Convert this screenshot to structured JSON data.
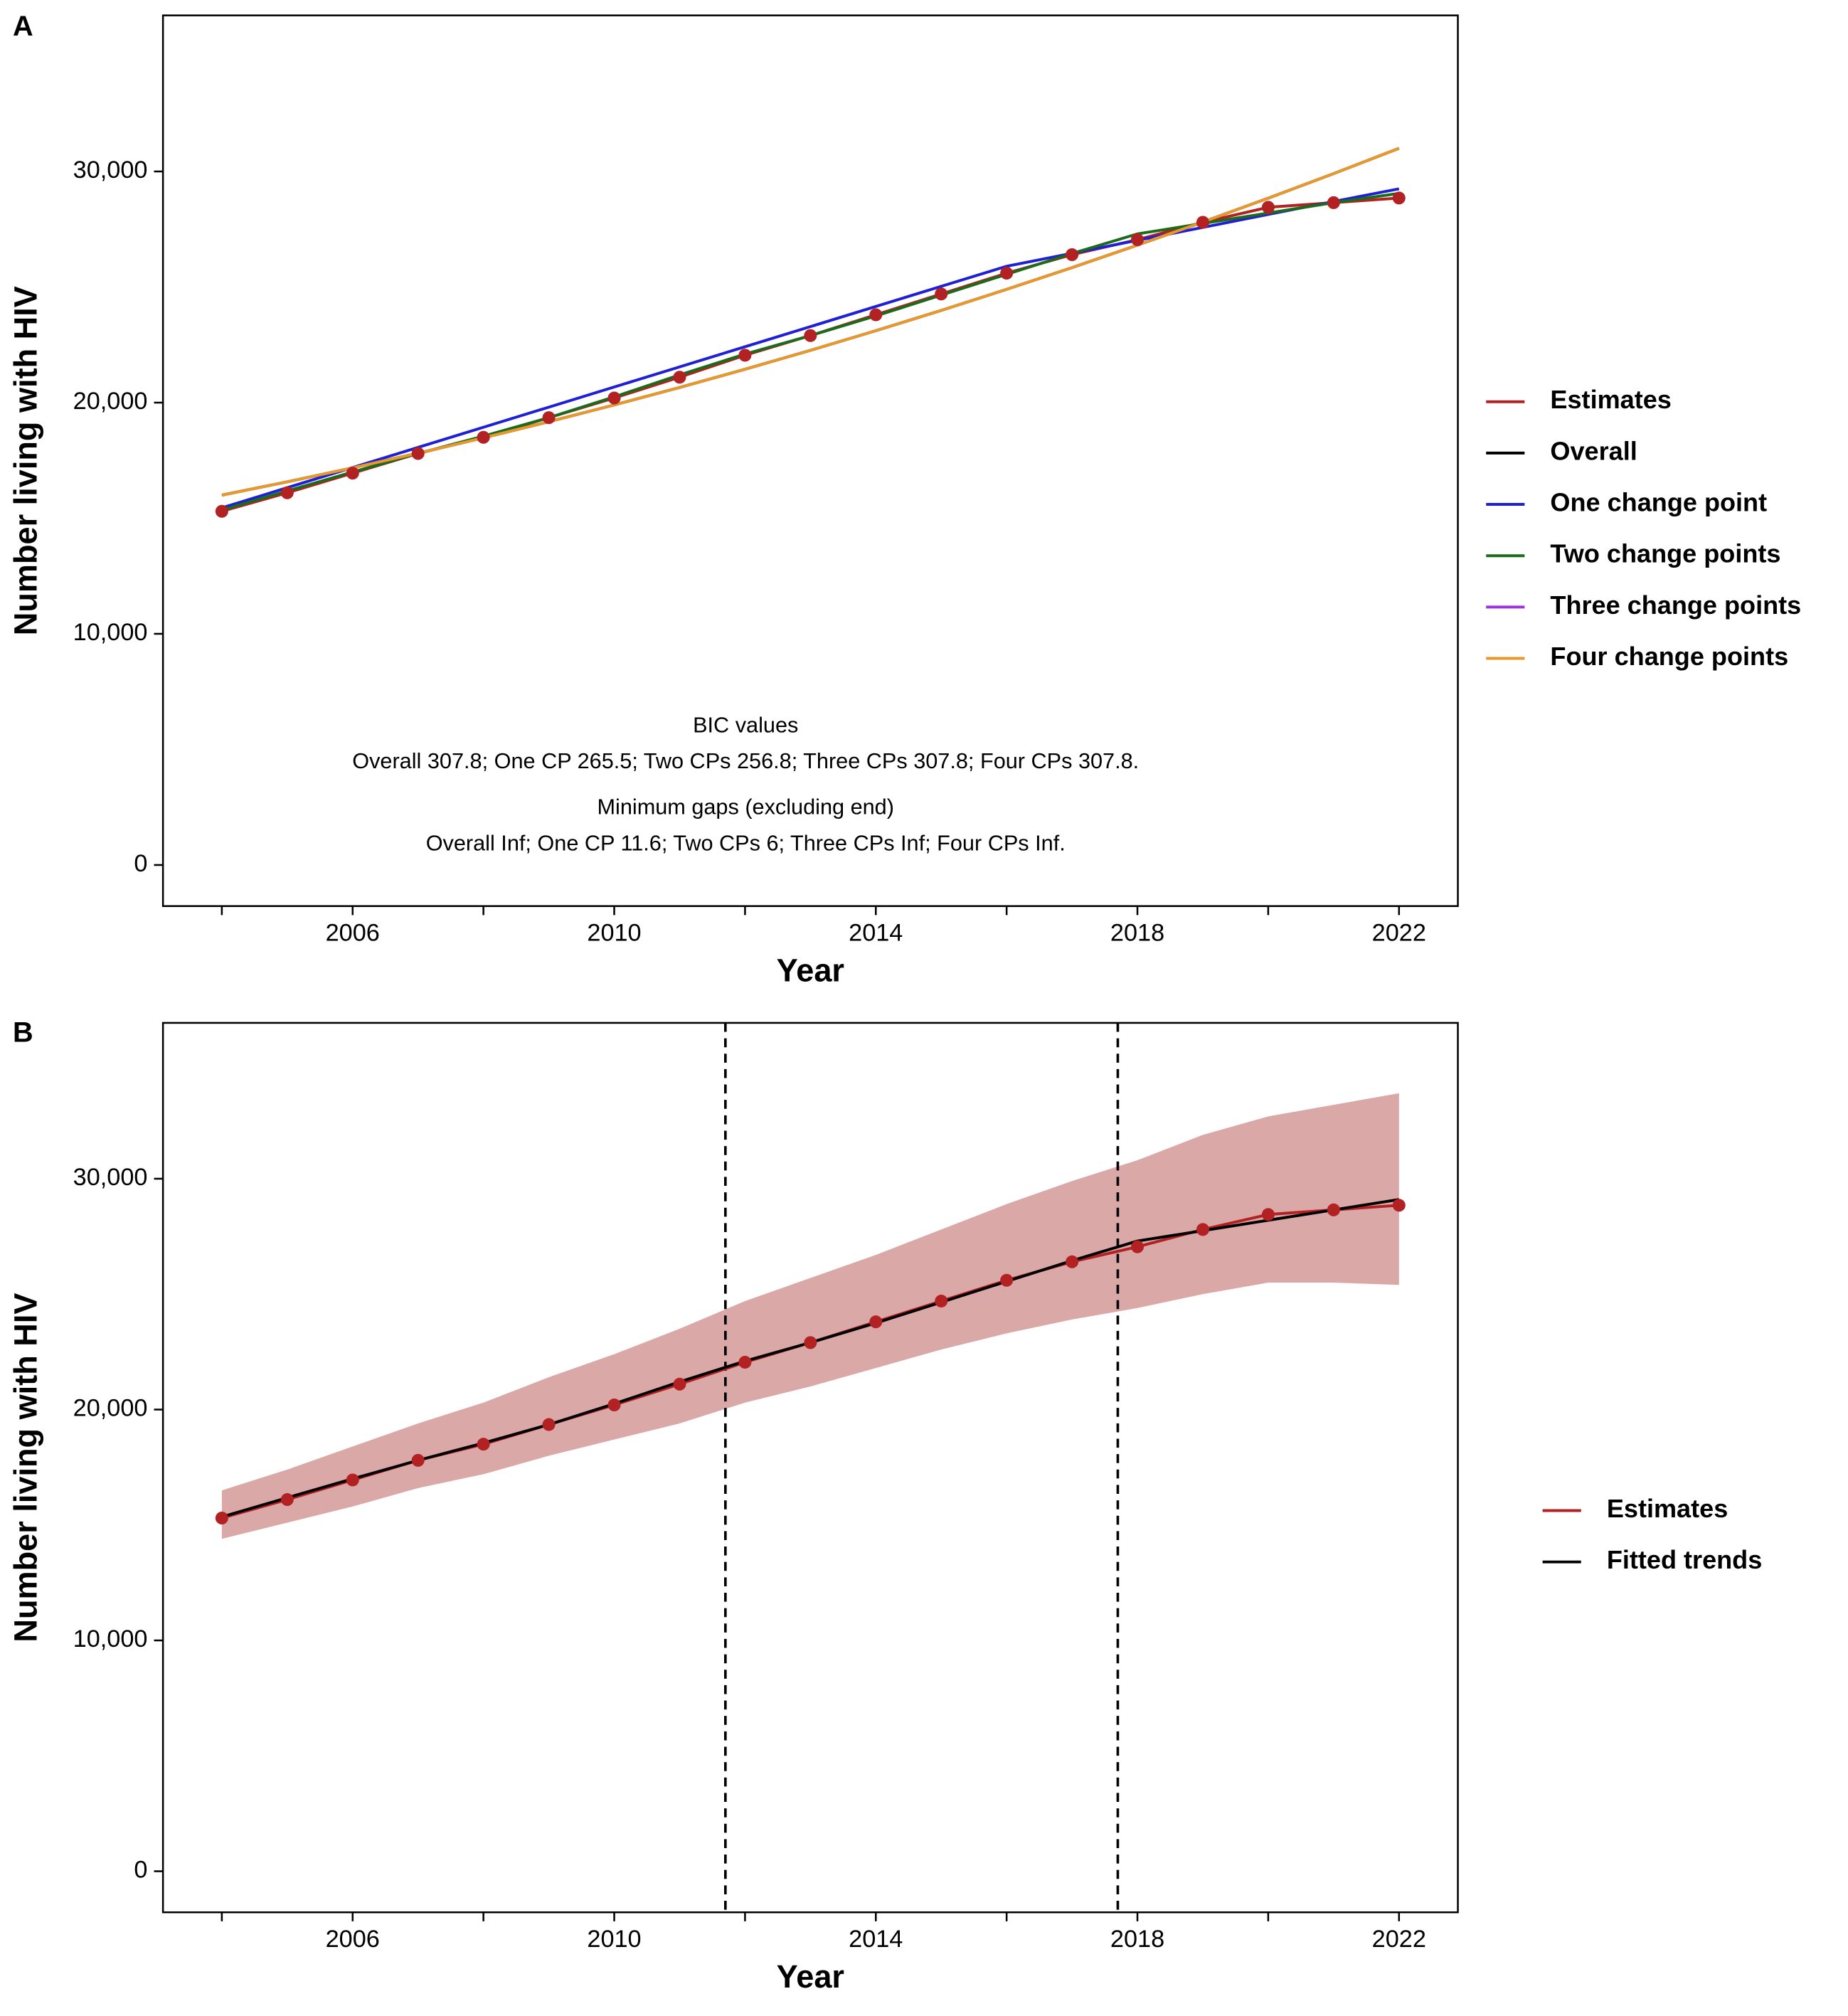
{
  "chart_data": [
    {
      "type": "line",
      "panel": "A",
      "xlabel": "Year",
      "ylabel": "Number living with HIV",
      "x": [
        2004,
        2005,
        2006,
        2007,
        2008,
        2009,
        2010,
        2011,
        2012,
        2013,
        2014,
        2015,
        2016,
        2017,
        2018,
        2019,
        2020,
        2021,
        2022
      ],
      "xlim": [
        2003.1,
        2022.9
      ],
      "xticks": [
        2006,
        2010,
        2014,
        2018,
        2022
      ],
      "xticks_minor": [
        2004,
        2008,
        2012,
        2016,
        2020
      ],
      "ylim": [
        -1778,
        36750
      ],
      "yticks": [
        0,
        {
          "value": 10000,
          "label": "10,000"
        },
        {
          "value": 20000,
          "label": "20,000"
        },
        {
          "value": 30000,
          "label": "30,000"
        }
      ],
      "series": [
        {
          "name": "Estimates",
          "color": "#b22222",
          "markers": true,
          "values": [
            15300,
            16100,
            16950,
            17800,
            18500,
            19350,
            20200,
            21100,
            22050,
            22900,
            23800,
            24700,
            25600,
            26400,
            27050,
            27800,
            28450,
            28650,
            28850
          ]
        },
        {
          "name": "Overall",
          "color": "#000000",
          "values": [
            16000,
            16574,
            17178,
            17812,
            18478,
            19174,
            19900,
            20657,
            21444,
            22262,
            23111,
            23990,
            24900,
            25840,
            26811,
            27812,
            28844,
            29906,
            31000
          ]
        },
        {
          "name": "One change point",
          "color": "#1f1fd6",
          "values": [
            15450,
            16321,
            17192,
            18063,
            18934,
            19805,
            20676,
            21547,
            22418,
            23289,
            24160,
            25031,
            25900,
            26460,
            27020,
            27580,
            28140,
            28700,
            29250
          ]
        },
        {
          "name": "Two change points",
          "color": "#1b6b1b",
          "values": [
            15350,
            16180,
            17000,
            17800,
            18550,
            19350,
            20250,
            21200,
            22100,
            22900,
            23750,
            24650,
            25550,
            26450,
            27300,
            27750,
            28200,
            28650,
            29050
          ]
        },
        {
          "name": "Three change points",
          "color": "#9b30e6",
          "values": [
            16000,
            16574,
            17178,
            17812,
            18478,
            19174,
            19900,
            20657,
            21444,
            22262,
            23111,
            23990,
            24900,
            25840,
            26811,
            27812,
            28844,
            29906,
            31000
          ]
        },
        {
          "name": "Four change points",
          "color": "#e69a28",
          "values": [
            16000,
            16574,
            17178,
            17812,
            18478,
            19174,
            19900,
            20657,
            21444,
            22262,
            23111,
            23990,
            24900,
            25840,
            26811,
            27812,
            28844,
            29906,
            31000
          ]
        }
      ],
      "annotations": [
        "BIC values",
        "Overall 307.8; One CP 265.5; Two CPs 256.8; Three CPs 307.8; Four CPs 307.8.",
        "Minimum gaps (excluding end)",
        "Overall Inf; One CP 11.6; Two CPs 6; Three CPs Inf; Four CPs Inf."
      ]
    },
    {
      "type": "line",
      "panel": "B",
      "xlabel": "Year",
      "ylabel": "Number living with HIV",
      "x": [
        2004,
        2005,
        2006,
        2007,
        2008,
        2009,
        2010,
        2011,
        2012,
        2013,
        2014,
        2015,
        2016,
        2017,
        2018,
        2019,
        2020,
        2021,
        2022
      ],
      "xlim": [
        2003.1,
        2022.9
      ],
      "xticks": [
        2006,
        2010,
        2014,
        2018,
        2022
      ],
      "xticks_minor": [
        2004,
        2008,
        2012,
        2016,
        2020
      ],
      "ylim": [
        -1778,
        36750
      ],
      "yticks": [
        0,
        {
          "value": 10000,
          "label": "10,000"
        },
        {
          "value": 20000,
          "label": "20,000"
        },
        {
          "value": 30000,
          "label": "30,000"
        }
      ],
      "band": {
        "color": "#dba8a8",
        "upper": [
          16500,
          17400,
          18400,
          19400,
          20300,
          21400,
          22400,
          23500,
          24700,
          25700,
          26700,
          27800,
          28900,
          29900,
          30800,
          31900,
          32700,
          33200,
          33700
        ],
        "lower": [
          14400,
          15100,
          15800,
          16600,
          17200,
          18000,
          18700,
          19400,
          20300,
          21000,
          21800,
          22600,
          23300,
          23900,
          24400,
          25000,
          25500,
          25500,
          25400
        ]
      },
      "vlines": [
        2011.7,
        2017.7
      ],
      "series": [
        {
          "name": "Estimates",
          "color": "#b22222",
          "markers": true,
          "values": [
            15300,
            16100,
            16950,
            17800,
            18500,
            19350,
            20200,
            21100,
            22050,
            22900,
            23800,
            24700,
            25600,
            26400,
            27050,
            27800,
            28450,
            28650,
            28850
          ]
        },
        {
          "name": "Fitted trends",
          "color": "#000000",
          "values": [
            15350,
            16180,
            17000,
            17800,
            18550,
            19350,
            20250,
            21200,
            22100,
            22900,
            23750,
            24650,
            25550,
            26450,
            27300,
            27750,
            28200,
            28650,
            29100
          ]
        }
      ]
    }
  ]
}
